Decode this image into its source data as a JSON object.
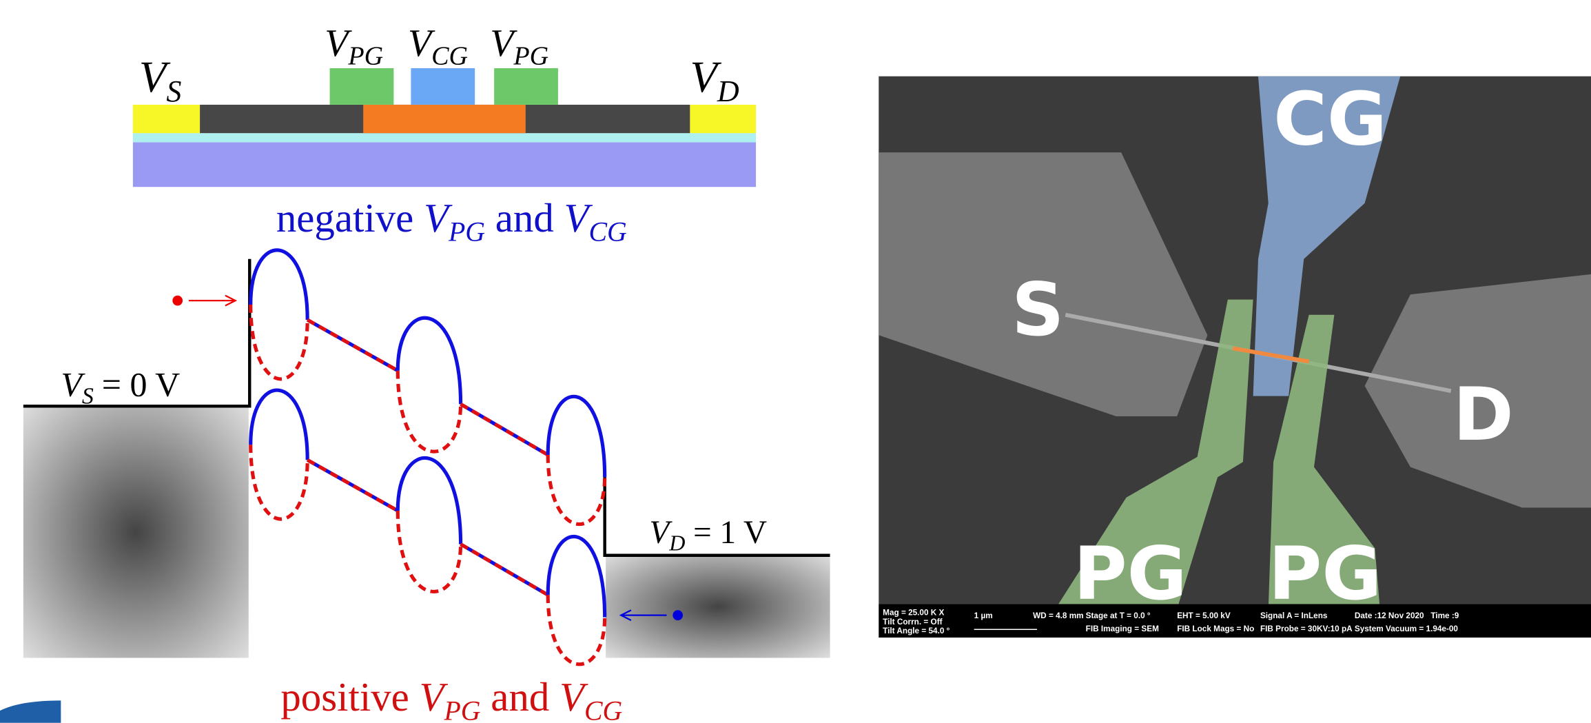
{
  "device": {
    "source": {
      "symbol": "V",
      "sub": "S"
    },
    "plunger_left": {
      "symbol": "V",
      "sub": "PG"
    },
    "control": {
      "symbol": "V",
      "sub": "CG"
    },
    "plunger_right": {
      "symbol": "V",
      "sub": "PG"
    },
    "drain": {
      "symbol": "V",
      "sub": "D"
    }
  },
  "diagram": {
    "negative_caption": {
      "color_word": "negative",
      "v1": {
        "symbol": "V",
        "sub": "PG"
      },
      "and": "and",
      "v2": {
        "symbol": "V",
        "sub": "CG"
      }
    },
    "source_level": {
      "symbol": "V",
      "sub": "S",
      "rest": "= 0 V"
    },
    "drain_level": {
      "symbol": "V",
      "sub": "D",
      "rest": "= 1 V"
    },
    "positive_caption": {
      "color_word": "positive",
      "v1": {
        "symbol": "V",
        "sub": "PG"
      },
      "and": "and",
      "v2": {
        "symbol": "V",
        "sub": "CG"
      }
    }
  },
  "sem": {
    "labels": [
      "CG",
      "S",
      "D",
      "PG",
      "PG"
    ],
    "info": [
      "Mag = 25.00 K X",
      "Tilt Corrn. = Off",
      "Tilt Angle = 54.0 °",
      "1 µm",
      "WD = 4.8 mm",
      "Stage at T = 0.0 °",
      "FIB Imaging = SEM",
      "EHT = 5.00 kV",
      "FIB Lock Mags = No",
      "Signal A = InLens",
      "FIB Probe = 30KV:10 pA",
      "Date :12 Nov 2020",
      "Time :9",
      "System Vacuum = 1.94e-00"
    ]
  }
}
